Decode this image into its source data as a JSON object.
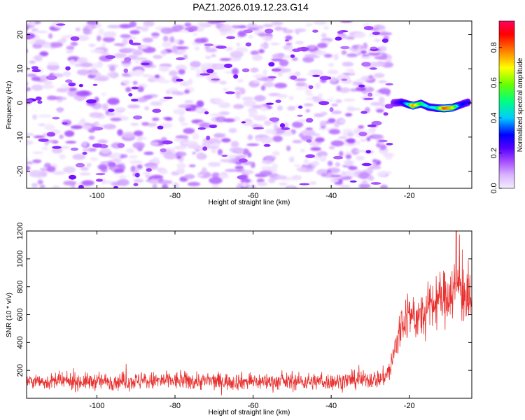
{
  "figure_title": "PAZ1.2026.019.12.23.G14",
  "chart_data": [
    {
      "type": "heatmap",
      "title": "PAZ1.2026.019.12.23.G14",
      "xlabel": "Height of straight line (km)",
      "ylabel": "Frequency (Hz)",
      "xlim": [
        -118,
        -4
      ],
      "ylim": [
        -25,
        24
      ],
      "xticks": [
        -100,
        -80,
        -60,
        -40,
        -20
      ],
      "yticks": [
        -20,
        -10,
        0,
        10,
        20
      ],
      "colorbar": {
        "label": "Normalized spectral amplitude",
        "range": [
          0.0,
          0.95
        ],
        "ticks": [
          0.0,
          0.2,
          0.4,
          0.6,
          0.8
        ],
        "colormap": [
          "#f2e6ff",
          "#d9b3ff",
          "#a64dff",
          "#6600ff",
          "#0000ff",
          "#00ffff",
          "#00ff00",
          "#ffff00",
          "#ff8000",
          "#ff0000",
          "#ff0080"
        ]
      },
      "noise_region": {
        "x_range": [
          -118,
          -25
        ],
        "amplitude_range": [
          0.0,
          0.2
        ]
      },
      "signal_track": [
        {
          "x": -24,
          "freq": 0.0,
          "amp": 0.25
        },
        {
          "x": -22,
          "freq": 0.2,
          "amp": 0.35
        },
        {
          "x": -20,
          "freq": -0.5,
          "amp": 0.5
        },
        {
          "x": -19,
          "freq": -0.8,
          "amp": 0.75
        },
        {
          "x": -17,
          "freq": -0.2,
          "amp": 0.55
        },
        {
          "x": -15,
          "freq": -1.2,
          "amp": 0.45
        },
        {
          "x": -13,
          "freq": -1.5,
          "amp": 0.5
        },
        {
          "x": -11,
          "freq": -1.6,
          "amp": 0.8
        },
        {
          "x": -9,
          "freq": -1.4,
          "amp": 0.7
        },
        {
          "x": -7,
          "freq": -0.6,
          "amp": 0.4
        },
        {
          "x": -5,
          "freq": 0.2,
          "amp": 0.35
        }
      ]
    },
    {
      "type": "line",
      "xlabel": "Height of straight line (km)",
      "ylabel": "SNR (10 * v/v)",
      "xlim": [
        -118,
        -4
      ],
      "ylim": [
        0,
        1200
      ],
      "xticks": [
        -100,
        -80,
        -60,
        -40,
        -20
      ],
      "yticks": [
        200,
        400,
        600,
        800,
        1000,
        1200
      ],
      "series": [
        {
          "name": "SNR",
          "color": "#e8312f",
          "envelope": [
            {
              "x": -118,
              "mean": 120,
              "spread": 50
            },
            {
              "x": -100,
              "mean": 120,
              "spread": 55
            },
            {
              "x": -80,
              "mean": 125,
              "spread": 60
            },
            {
              "x": -60,
              "mean": 120,
              "spread": 55
            },
            {
              "x": -40,
              "mean": 120,
              "spread": 55
            },
            {
              "x": -27,
              "mean": 140,
              "spread": 60
            },
            {
              "x": -25,
              "mean": 200,
              "spread": 80
            },
            {
              "x": -23,
              "mean": 420,
              "spread": 180
            },
            {
              "x": -21,
              "mean": 580,
              "spread": 150
            },
            {
              "x": -19,
              "mean": 600,
              "spread": 150
            },
            {
              "x": -17,
              "mean": 560,
              "spread": 160
            },
            {
              "x": -15,
              "mean": 640,
              "spread": 170
            },
            {
              "x": -13,
              "mean": 700,
              "spread": 170
            },
            {
              "x": -11,
              "mean": 720,
              "spread": 180
            },
            {
              "x": -9,
              "mean": 780,
              "spread": 200
            },
            {
              "x": -7,
              "mean": 820,
              "spread": 230
            },
            {
              "x": -5,
              "mean": 700,
              "spread": 200
            },
            {
              "x": -4,
              "mean": 650,
              "spread": 150
            }
          ],
          "peak": {
            "x": -8,
            "y": 1200
          }
        }
      ]
    }
  ]
}
